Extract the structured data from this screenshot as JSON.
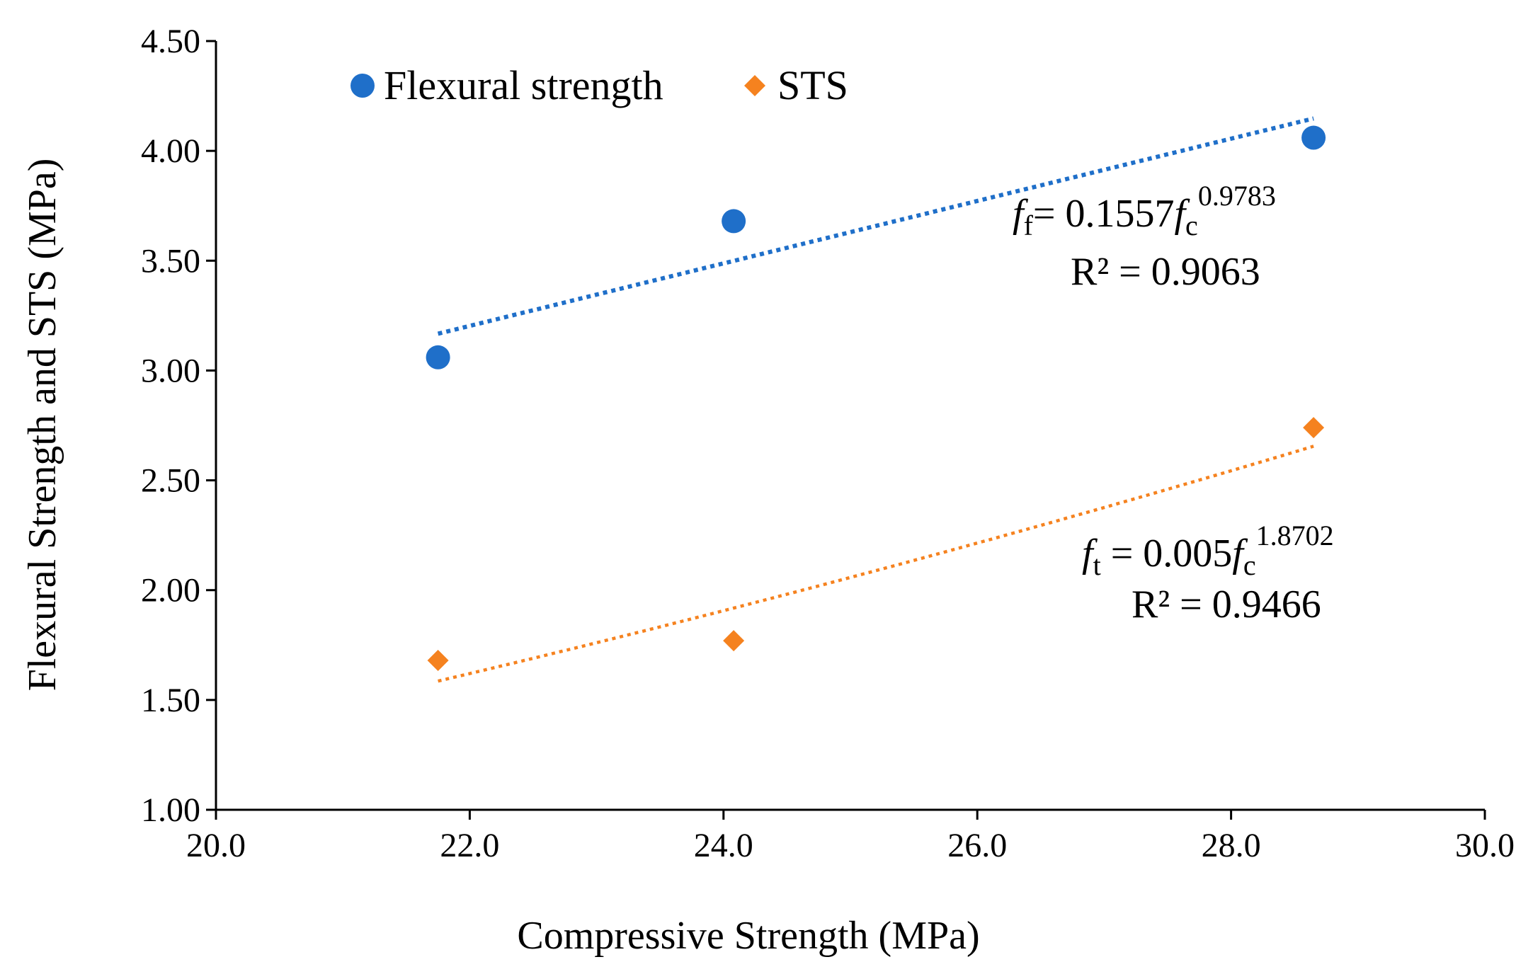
{
  "chart_data": {
    "type": "scatter",
    "title": "",
    "xlabel": "Compressive Strength (MPa)",
    "ylabel": "Flexural Strength and STS (MPa)",
    "xlim": [
      20.0,
      30.0
    ],
    "ylim": [
      1.0,
      4.5
    ],
    "xticks": [
      20.0,
      22.0,
      24.0,
      26.0,
      28.0,
      30.0
    ],
    "xtick_labels": [
      "20.0",
      "22.0",
      "24.0",
      "26.0",
      "28.0",
      "30.0"
    ],
    "yticks": [
      1.0,
      1.5,
      2.0,
      2.5,
      3.0,
      3.5,
      4.0,
      4.5
    ],
    "ytick_labels": [
      "1.00",
      "1.50",
      "2.00",
      "2.50",
      "3.00",
      "3.50",
      "4.00",
      "4.50"
    ],
    "grid": false,
    "legend_position": "top-left",
    "series": [
      {
        "name": "Flexural strength",
        "marker": "circle",
        "color": "#1F6FC9",
        "x": [
          21.75,
          24.08,
          28.65
        ],
        "y": [
          3.06,
          3.68,
          4.06
        ],
        "trendline": {
          "type": "power",
          "coef": 0.1557,
          "exp": 0.9783,
          "x_range": [
            21.75,
            28.65
          ]
        },
        "equation": {
          "lhs_var": "f",
          "lhs_sub": "f",
          "rhs_coef": "= 0.1557",
          "rhs_var": "f",
          "rhs_sub": "c",
          "rhs_exp": "0.9783",
          "r2": "R² = 0.9063"
        }
      },
      {
        "name": "STS",
        "marker": "diamond",
        "color": "#F5821F",
        "x": [
          21.75,
          24.08,
          28.65
        ],
        "y": [
          1.68,
          1.77,
          2.74
        ],
        "trendline": {
          "type": "power",
          "coef": 0.005,
          "exp": 1.8702,
          "x_range": [
            21.75,
            28.65
          ]
        },
        "equation": {
          "lhs_var": "f",
          "lhs_sub": "t",
          "rhs_coef": " = 0.005",
          "rhs_var": "f",
          "rhs_sub": "c",
          "rhs_exp": "1.8702",
          "r2": "R² = 0.9466"
        }
      }
    ]
  }
}
